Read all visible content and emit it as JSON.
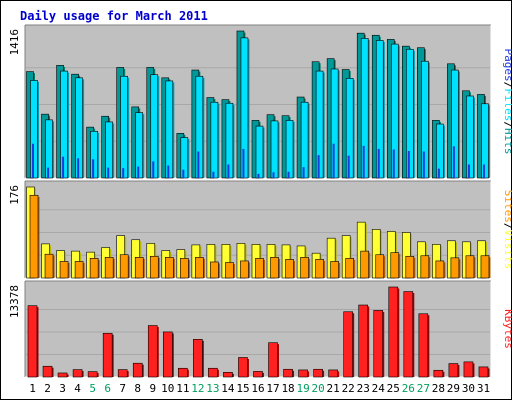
{
  "title": "Daily usage for March 2011",
  "colors": {
    "title": "#0000cc",
    "hits": "#009999",
    "hits_dark": "#00806b",
    "files": "#00e0ff",
    "files_dark": "#009bb0",
    "pages": "#1e3cdc",
    "sites": "#ffff33",
    "sites_dark": "#b8b800",
    "visits": "#ff9900",
    "visits_dark": "#b06000",
    "kbytes": "#ff2020",
    "kbytes_dark": "#a00000",
    "weekend": "#00a060",
    "panel": "#c0c0c0"
  },
  "chart_data": [
    {
      "type": "bar",
      "panel": "pages-files-hits",
      "max_label": "1416",
      "max": 1416,
      "categories": [
        "1",
        "2",
        "3",
        "4",
        "5",
        "6",
        "7",
        "8",
        "9",
        "10",
        "11",
        "12",
        "13",
        "14",
        "15",
        "16",
        "17",
        "18",
        "19",
        "20",
        "21",
        "22",
        "23",
        "24",
        "25",
        "26",
        "27",
        "28",
        "29",
        "30",
        "31"
      ],
      "weekend_days": [
        5,
        6,
        12,
        13,
        19,
        20,
        26,
        27
      ],
      "legend": [
        {
          "text": "Pages",
          "color_key": "pages"
        },
        {
          "text": "/",
          "color_key": "sep"
        },
        {
          "text": "Files",
          "color_key": "files"
        },
        {
          "text": "/",
          "color_key": "sep"
        },
        {
          "text": "Hits",
          "color_key": "hits"
        }
      ],
      "series": [
        {
          "name": "Hits",
          "values": [
            1025,
            615,
            1085,
            1000,
            490,
            595,
            1065,
            685,
            1065,
            965,
            430,
            1040,
            775,
            755,
            1416,
            555,
            610,
            600,
            780,
            1120,
            1150,
            1045,
            1395,
            1375,
            1335,
            1270,
            1255,
            555,
            1100,
            840,
            805
          ]
        },
        {
          "name": "Files",
          "values": [
            940,
            560,
            1030,
            965,
            450,
            540,
            980,
            630,
            995,
            935,
            390,
            980,
            730,
            720,
            1350,
            500,
            550,
            555,
            730,
            1030,
            1050,
            960,
            1345,
            1325,
            1290,
            1240,
            1125,
            520,
            1040,
            790,
            715
          ]
        },
        {
          "name": "Pages",
          "values": [
            330,
            100,
            205,
            190,
            180,
            100,
            95,
            110,
            160,
            120,
            80,
            255,
            60,
            130,
            280,
            40,
            55,
            60,
            105,
            220,
            330,
            215,
            310,
            280,
            275,
            260,
            255,
            90,
            305,
            130,
            130
          ]
        }
      ]
    },
    {
      "type": "bar",
      "panel": "sites-visits",
      "max_label": "176",
      "max": 176,
      "categories": [
        "1",
        "2",
        "3",
        "4",
        "5",
        "6",
        "7",
        "8",
        "9",
        "10",
        "11",
        "12",
        "13",
        "14",
        "15",
        "16",
        "17",
        "18",
        "19",
        "20",
        "21",
        "22",
        "23",
        "24",
        "25",
        "26",
        "27",
        "28",
        "29",
        "30",
        "31"
      ],
      "legend": [
        {
          "text": "Sites",
          "color_key": "visits"
        },
        {
          "text": "/",
          "color_key": "sep"
        },
        {
          "text": "Visits",
          "color_key": "sites"
        }
      ],
      "series": [
        {
          "name": "Sites",
          "values": [
            176,
            66,
            53,
            52,
            50,
            59,
            82,
            74,
            67,
            53,
            55,
            64,
            65,
            65,
            67,
            65,
            65,
            64,
            62,
            48,
            77,
            82,
            108,
            94,
            90,
            88,
            70,
            65,
            72,
            70,
            72
          ]
        },
        {
          "name": "Visits",
          "values": [
            160,
            46,
            32,
            32,
            38,
            40,
            45,
            40,
            42,
            40,
            38,
            40,
            31,
            30,
            33,
            38,
            40,
            36,
            40,
            36,
            32,
            38,
            52,
            45,
            49,
            42,
            43,
            33,
            39,
            43,
            43
          ]
        }
      ]
    },
    {
      "type": "bar",
      "panel": "kbytes",
      "max_label": "13378",
      "max": 13378,
      "categories": [
        "1",
        "2",
        "3",
        "4",
        "5",
        "6",
        "7",
        "8",
        "9",
        "10",
        "11",
        "12",
        "13",
        "14",
        "15",
        "16",
        "17",
        "18",
        "19",
        "20",
        "21",
        "22",
        "23",
        "24",
        "25",
        "26",
        "27",
        "28",
        "29",
        "30",
        "31"
      ],
      "legend": [
        {
          "text": "KBytes",
          "color_key": "kbytes"
        }
      ],
      "series": [
        {
          "name": "KBytes",
          "values": [
            10600,
            1600,
            600,
            1100,
            800,
            6500,
            1100,
            2050,
            7650,
            6700,
            1300,
            5600,
            1300,
            700,
            2900,
            830,
            5100,
            1150,
            1050,
            1150,
            1050,
            9700,
            10700,
            9900,
            13378,
            12700,
            9400,
            1000,
            2000,
            2250,
            1500
          ]
        }
      ]
    }
  ]
}
